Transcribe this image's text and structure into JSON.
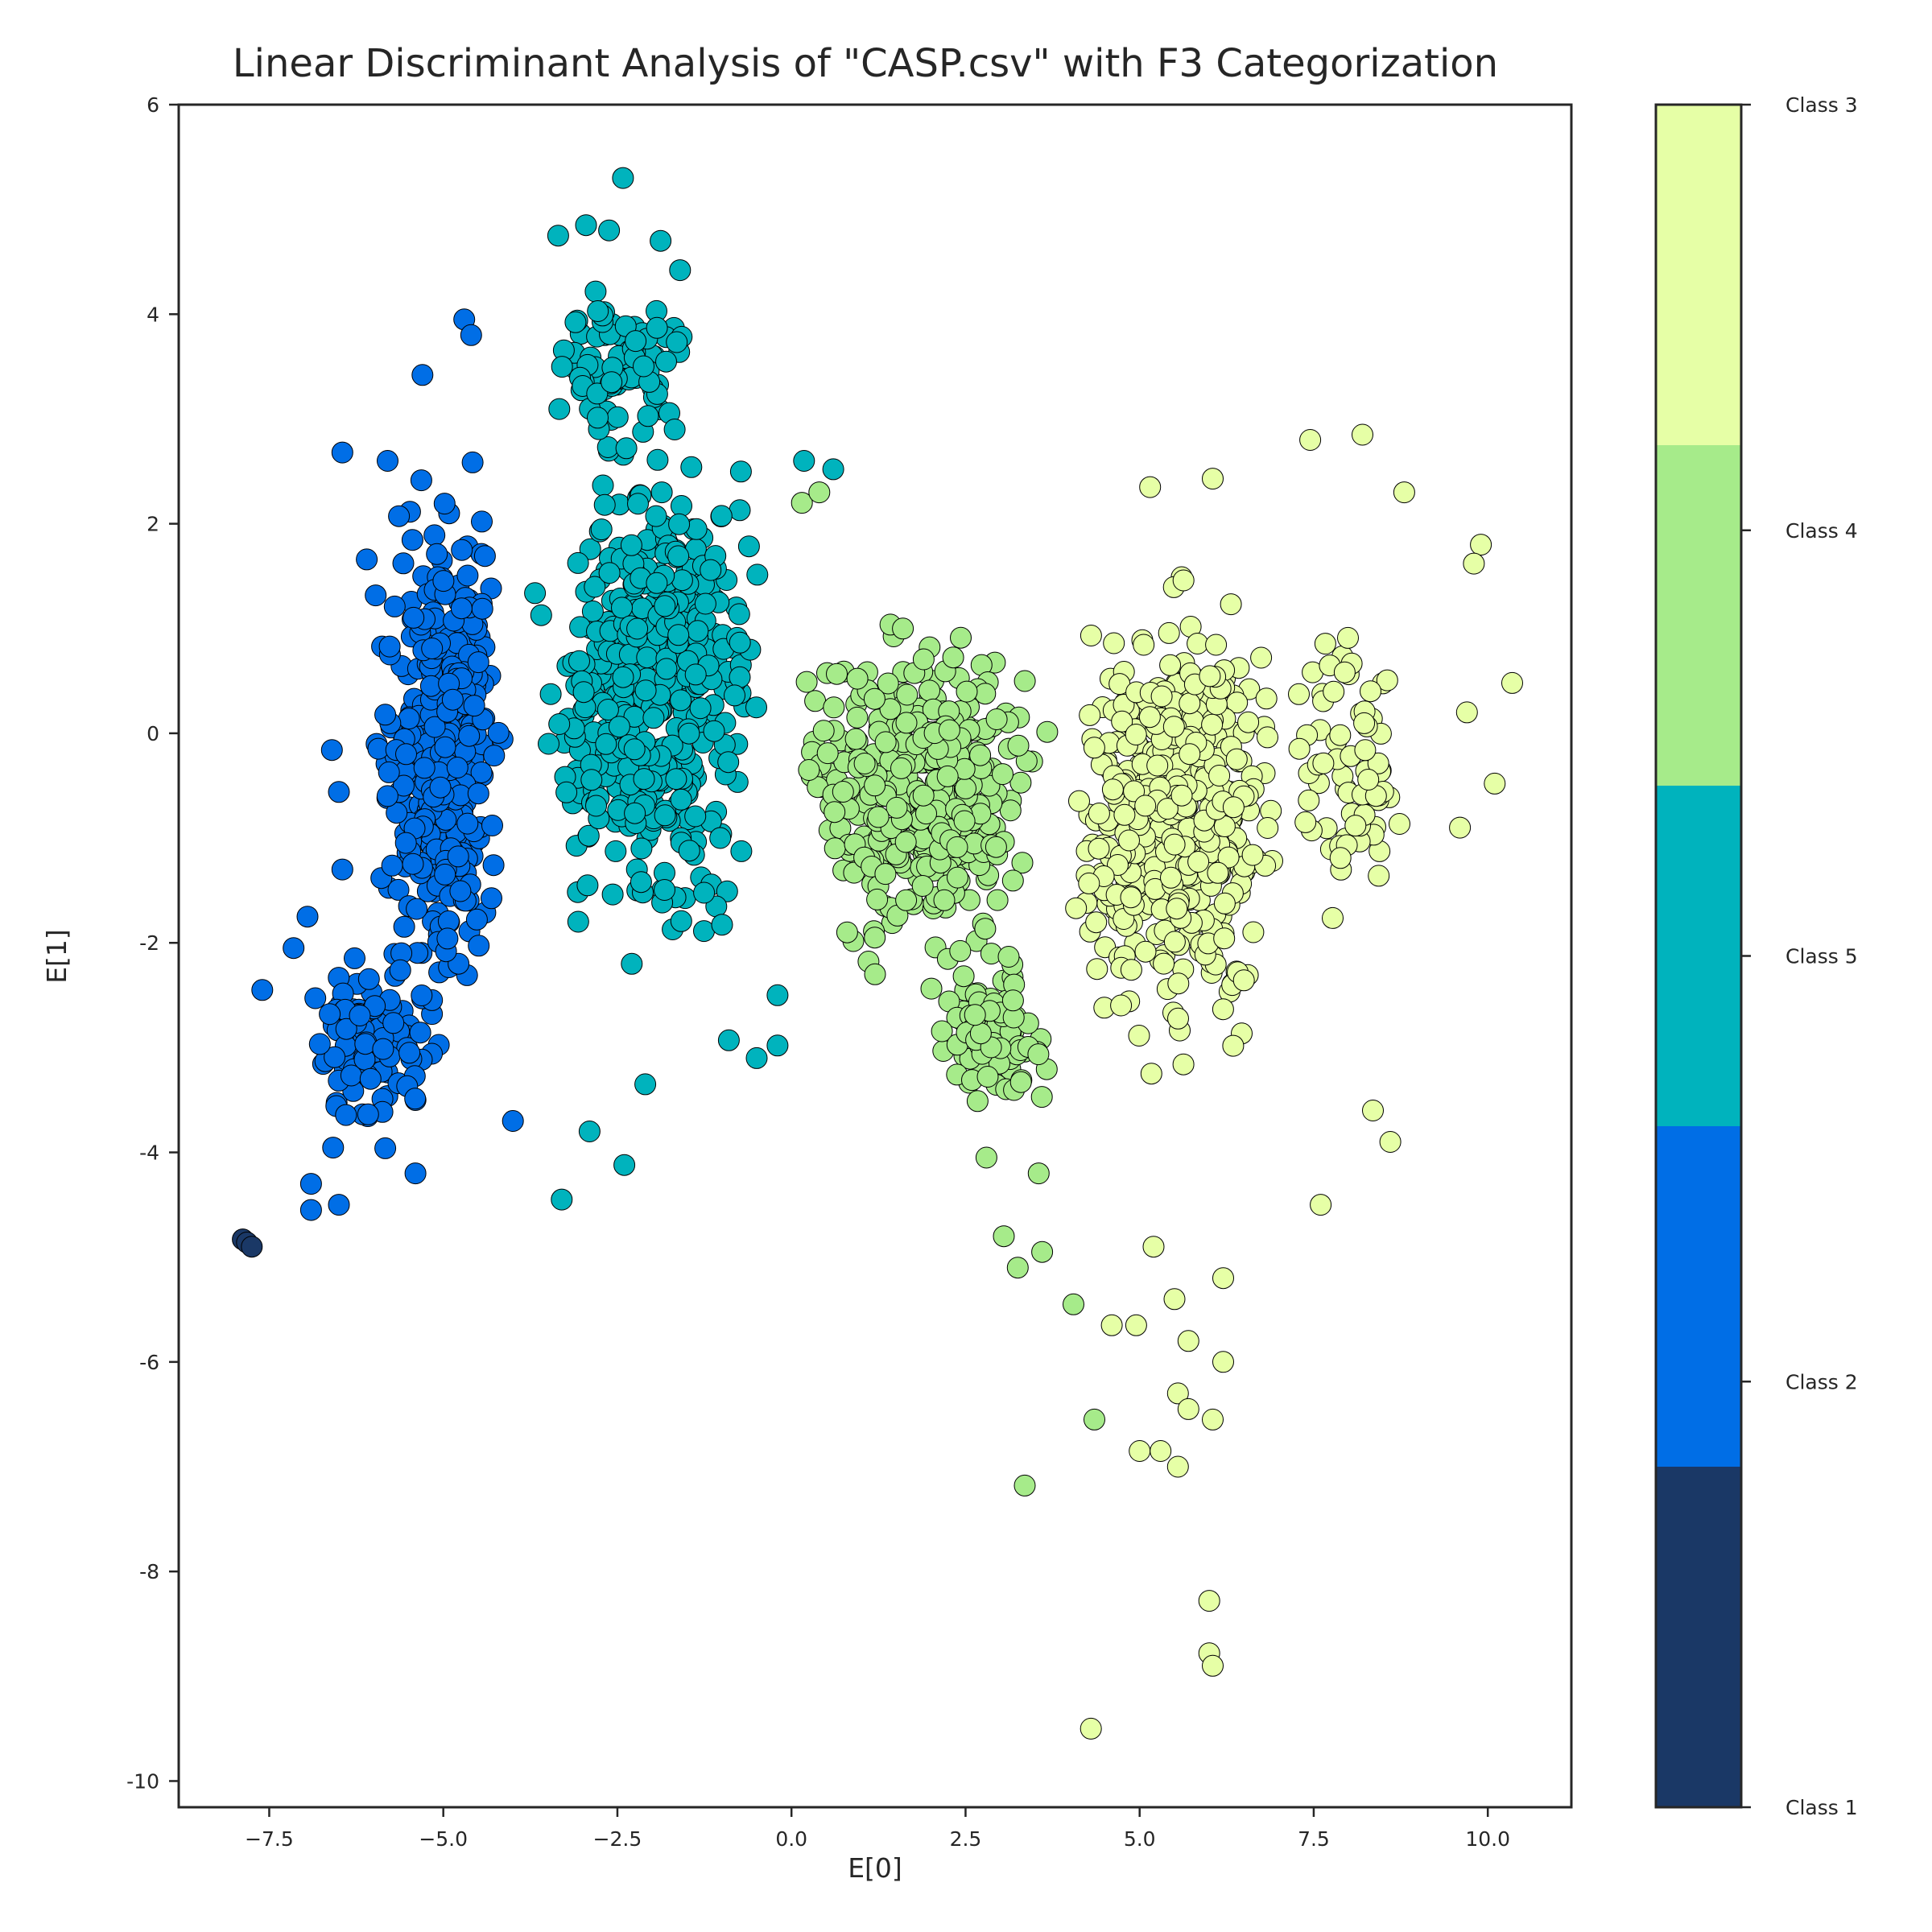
{
  "chart_data": {
    "type": "scatter",
    "title": "Linear Discriminant Analysis of \"CASP.csv\" with F3 Categorization",
    "xlabel": "E[0]",
    "ylabel": "E[1]",
    "xlim": [
      -8.8,
      11.2
    ],
    "ylim": [
      -10.25,
      6.0
    ],
    "xticks": [
      -7.5,
      -5.0,
      -2.5,
      0.0,
      2.5,
      5.0,
      7.5,
      10.0
    ],
    "xtick_labels": [
      "−7.5",
      "−5.0",
      "−2.5",
      "0.0",
      "2.5",
      "5.0",
      "7.5",
      "10.0"
    ],
    "yticks": [
      6,
      4,
      2,
      0,
      -2,
      -4,
      -6,
      -8,
      -10
    ],
    "ytick_labels": [
      "6",
      "4",
      "2",
      "0",
      "-2",
      "-4",
      "-6",
      "-8",
      "-10"
    ],
    "grid": false,
    "legend": "colorbar-right",
    "colorbar": {
      "labels": [
        "Class 3",
        "Class 4",
        "Class 5",
        "Class 2",
        "Class 1"
      ],
      "colors": [
        "#e6ffa6",
        "#a6eb8a",
        "#00b3bd",
        "#006ee6",
        "#1a3866"
      ]
    },
    "marker_edge_color": "#000000",
    "series": [
      {
        "name": "Class 1",
        "color": "#1a3866",
        "clusters": [],
        "points": [
          [
            -7.88,
            -4.83
          ],
          [
            -7.82,
            -4.86
          ],
          [
            -7.75,
            -4.9
          ]
        ]
      },
      {
        "name": "Class 2",
        "color": "#006ee6",
        "clusters": [
          {
            "n": 360,
            "x": [
              -6.2,
              -3.95
            ],
            "y": [
              -3.6,
              3.2
            ],
            "seed": 11
          },
          {
            "n": 90,
            "x": [
              -7.1,
              -4.9
            ],
            "y": [
              -4.3,
              -1.6
            ],
            "seed": 12
          }
        ],
        "points": [
          [
            -6.45,
            2.68
          ],
          [
            -5.8,
            2.6
          ],
          [
            -4.7,
            3.95
          ],
          [
            -4.6,
            3.8
          ],
          [
            -5.3,
            3.42
          ],
          [
            -6.1,
            1.66
          ],
          [
            -6.6,
            -0.16
          ],
          [
            -6.5,
            -0.56
          ],
          [
            -6.45,
            -1.3
          ],
          [
            -7.6,
            -2.45
          ],
          [
            -7.15,
            -2.05
          ],
          [
            -6.95,
            -1.75
          ],
          [
            -6.9,
            -4.3
          ],
          [
            -6.9,
            -4.55
          ],
          [
            -6.5,
            -4.5
          ],
          [
            -5.4,
            -4.2
          ],
          [
            -4.0,
            -3.7
          ]
        ]
      },
      {
        "name": "Class 5",
        "color": "#00b3bd",
        "clusters": [
          {
            "n": 480,
            "x": [
              -3.85,
              -0.1
            ],
            "y": [
              -2.8,
              3.5
            ],
            "seed": 21
          },
          {
            "n": 80,
            "x": [
              -3.6,
              -1.2
            ],
            "y": [
              2.4,
              4.6
            ],
            "seed": 22
          }
        ],
        "points": [
          [
            -2.42,
            5.3
          ],
          [
            -3.35,
            4.75
          ],
          [
            -2.95,
            4.85
          ],
          [
            -2.62,
            4.8
          ],
          [
            -1.88,
            4.7
          ],
          [
            -1.6,
            4.42
          ],
          [
            -3.3,
            -4.45
          ],
          [
            -2.9,
            -3.8
          ],
          [
            -2.4,
            -4.12
          ],
          [
            -2.1,
            -3.35
          ],
          [
            -0.9,
            -2.93
          ],
          [
            -0.2,
            -2.98
          ],
          [
            -0.5,
            -3.1
          ],
          [
            -0.2,
            -2.5
          ],
          [
            0.18,
            2.6
          ],
          [
            0.6,
            2.52
          ]
        ]
      },
      {
        "name": "Class 4",
        "color": "#a6eb8a",
        "clusters": [
          {
            "n": 380,
            "x": [
              -0.1,
              3.85
            ],
            "y": [
              -2.6,
              1.5
            ],
            "seed": 31
          },
          {
            "n": 90,
            "x": [
              1.9,
              3.9
            ],
            "y": [
              -3.9,
              -1.8
            ],
            "seed": 32
          }
        ],
        "points": [
          [
            0.15,
            2.2
          ],
          [
            0.4,
            2.3
          ],
          [
            0.8,
            -1.9
          ],
          [
            1.2,
            -2.3
          ],
          [
            2.8,
            -4.05
          ],
          [
            3.05,
            -4.8
          ],
          [
            3.25,
            -5.1
          ],
          [
            3.6,
            -4.95
          ],
          [
            3.35,
            -7.18
          ],
          [
            4.35,
            -6.55
          ],
          [
            4.05,
            -5.45
          ],
          [
            3.55,
            -4.2
          ]
        ]
      },
      {
        "name": "Class 3",
        "color": "#e6ffa6",
        "clusters": [
          {
            "n": 500,
            "x": [
              3.85,
              7.2
            ],
            "y": [
              -3.6,
              1.9
            ],
            "seed": 41
          },
          {
            "n": 70,
            "x": [
              7.0,
              9.0
            ],
            "y": [
              -2.2,
              1.4
            ],
            "seed": 42
          }
        ],
        "points": [
          [
            7.45,
            2.8
          ],
          [
            8.2,
            2.85
          ],
          [
            6.05,
            2.43
          ],
          [
            5.15,
            2.35
          ],
          [
            8.8,
            2.3
          ],
          [
            9.9,
            1.8
          ],
          [
            9.8,
            1.62
          ],
          [
            9.7,
            0.2
          ],
          [
            10.35,
            0.48
          ],
          [
            10.1,
            -0.48
          ],
          [
            9.6,
            -0.9
          ],
          [
            8.6,
            -3.9
          ],
          [
            8.35,
            -3.6
          ],
          [
            7.6,
            -4.5
          ],
          [
            5.2,
            -4.9
          ],
          [
            5.5,
            -5.4
          ],
          [
            5.7,
            -5.8
          ],
          [
            6.2,
            -6.0
          ],
          [
            6.2,
            -5.2
          ],
          [
            4.6,
            -5.65
          ],
          [
            4.95,
            -5.65
          ],
          [
            5.55,
            -6.3
          ],
          [
            5.7,
            -6.45
          ],
          [
            6.05,
            -6.55
          ],
          [
            5.0,
            -6.85
          ],
          [
            5.3,
            -6.85
          ],
          [
            5.55,
            -7.0
          ],
          [
            6.0,
            -8.28
          ],
          [
            6.0,
            -8.78
          ],
          [
            6.05,
            -8.9
          ],
          [
            4.3,
            -9.5
          ]
        ]
      }
    ]
  }
}
